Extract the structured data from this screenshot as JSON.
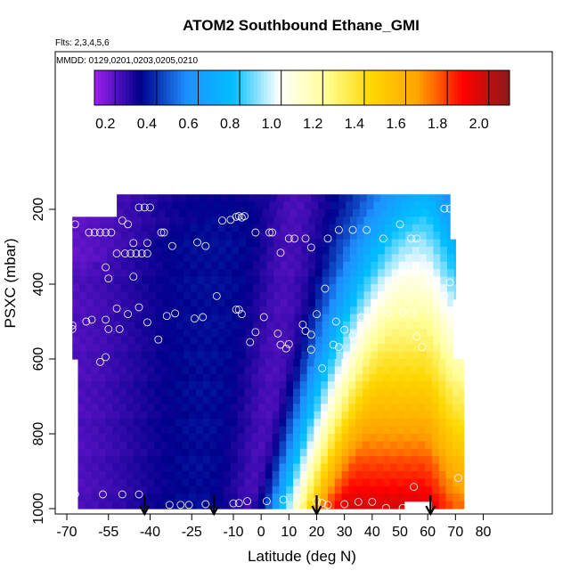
{
  "chart_data": {
    "type": "heatmap",
    "title": "ATOM2 Southbound Ethane_GMI",
    "subtitle_flights": "Flts: 2,3,4,5,6",
    "subtitle_dates": "MMDD: 0129,0201,0203,0205,0210",
    "xlabel": "Latitude (deg N)",
    "ylabel": "PSXC (mbar)",
    "xlim": [
      -70,
      85
    ],
    "ylim": [
      1010,
      80
    ],
    "x_ticks": [
      -70,
      -55,
      -40,
      -25,
      -10,
      0,
      10,
      20,
      30,
      40,
      50,
      60,
      70,
      80
    ],
    "x_tick_labels": [
      "-70",
      "-55",
      "-40",
      "-25",
      "-10",
      "0",
      "10",
      "20",
      "30",
      "40",
      "50",
      "60",
      "70",
      "80"
    ],
    "y_ticks": [
      200,
      400,
      600,
      800,
      1000
    ],
    "y_tick_labels": [
      "200",
      "400",
      "600",
      "800",
      "1000"
    ],
    "colorbar": {
      "ticks": [
        0.2,
        0.4,
        0.6,
        0.8,
        1.0,
        1.2,
        1.4,
        1.6,
        1.8,
        2.0
      ],
      "tick_labels": [
        "0.2",
        "0.4",
        "0.6",
        "0.8",
        "1.0",
        "1.2",
        "1.4",
        "1.6",
        "1.8",
        "2.0"
      ],
      "range": [
        0.1,
        2.1
      ],
      "colors": [
        "#a020f0",
        "#00008b",
        "#1e90ff",
        "#00bfff",
        "#ffffff",
        "#ffff99",
        "#ffd700",
        "#ffa500",
        "#ff0000",
        "#8b1a1a"
      ]
    },
    "arrows_latitude": [
      -42,
      -17,
      20,
      61
    ],
    "observation_points": [
      [
        -67,
        240
      ],
      [
        -62,
        262
      ],
      [
        -60,
        262
      ],
      [
        -58,
        262
      ],
      [
        -56,
        262
      ],
      [
        -54,
        262
      ],
      [
        -50,
        230
      ],
      [
        -48,
        240
      ],
      [
        -44,
        195
      ],
      [
        -42,
        195
      ],
      [
        -40,
        195
      ],
      [
        -36,
        262
      ],
      [
        -35,
        262
      ],
      [
        -32,
        298
      ],
      [
        -23,
        288
      ],
      [
        -20,
        298
      ],
      [
        -14,
        230
      ],
      [
        -11,
        228
      ],
      [
        -9,
        220
      ],
      [
        -8,
        218
      ],
      [
        -7,
        222
      ],
      [
        -6,
        218
      ],
      [
        -2,
        262
      ],
      [
        3,
        262
      ],
      [
        4,
        262
      ],
      [
        7,
        316
      ],
      [
        10,
        278
      ],
      [
        12,
        278
      ],
      [
        16,
        278
      ],
      [
        18,
        302
      ],
      [
        24,
        278
      ],
      [
        28,
        255
      ],
      [
        33,
        255
      ],
      [
        38,
        255
      ],
      [
        44,
        278
      ],
      [
        50,
        240
      ],
      [
        54,
        278
      ],
      [
        56,
        278
      ],
      [
        66,
        198
      ],
      [
        68,
        198
      ],
      [
        -52,
        318
      ],
      [
        -49,
        318
      ],
      [
        -47,
        318
      ],
      [
        -45,
        318
      ],
      [
        -43,
        318
      ],
      [
        -41,
        318
      ],
      [
        -46,
        290
      ],
      [
        -41,
        290
      ],
      [
        -56,
        355
      ],
      [
        -55,
        385
      ],
      [
        -46,
        380
      ],
      [
        -52,
        465
      ],
      [
        -48,
        480
      ],
      [
        -55,
        520
      ],
      [
        -51,
        520
      ],
      [
        -44,
        462
      ],
      [
        -41,
        502
      ],
      [
        -37,
        548
      ],
      [
        -34,
        485
      ],
      [
        -31,
        478
      ],
      [
        -24,
        492
      ],
      [
        -21,
        488
      ],
      [
        -16,
        432
      ],
      [
        -9,
        468
      ],
      [
        -8,
        468
      ],
      [
        -7,
        480
      ],
      [
        -2,
        528
      ],
      [
        1,
        488
      ],
      [
        -4,
        555
      ],
      [
        6,
        532
      ],
      [
        9,
        572
      ],
      [
        15,
        508
      ],
      [
        16,
        525
      ],
      [
        18,
        535
      ],
      [
        20,
        480
      ],
      [
        23,
        412
      ],
      [
        27,
        500
      ],
      [
        30,
        522
      ],
      [
        33,
        538
      ],
      [
        36,
        488
      ],
      [
        40,
        502
      ],
      [
        46,
        478
      ],
      [
        51,
        475
      ],
      [
        54,
        478
      ],
      [
        56,
        540
      ],
      [
        58,
        568
      ],
      [
        60,
        400
      ],
      [
        61,
        398
      ],
      [
        66,
        432
      ],
      [
        68,
        395
      ],
      [
        -68,
        510
      ],
      [
        -68,
        520
      ],
      [
        -58,
        608
      ],
      [
        -56,
        595
      ],
      [
        -63,
        500
      ],
      [
        -61,
        495
      ],
      [
        -56,
        495
      ],
      [
        7,
        562
      ],
      [
        10,
        560
      ],
      [
        18,
        575
      ],
      [
        22,
        625
      ],
      [
        26,
        562
      ],
      [
        28,
        568
      ],
      [
        -67,
        962
      ],
      [
        -57,
        962
      ],
      [
        -50,
        962
      ],
      [
        -44,
        962
      ],
      [
        -33,
        990
      ],
      [
        -29,
        990
      ],
      [
        -26,
        990
      ],
      [
        -20,
        988
      ],
      [
        -10,
        986
      ],
      [
        -8,
        985
      ],
      [
        -5,
        980
      ],
      [
        2,
        980
      ],
      [
        8,
        976
      ],
      [
        14,
        976
      ],
      [
        20,
        980
      ],
      [
        22,
        985
      ],
      [
        24,
        990
      ],
      [
        30,
        988
      ],
      [
        35,
        982
      ],
      [
        40,
        982
      ],
      [
        45,
        998
      ],
      [
        51,
        998
      ],
      [
        55,
        942
      ],
      [
        71,
        918
      ]
    ]
  }
}
